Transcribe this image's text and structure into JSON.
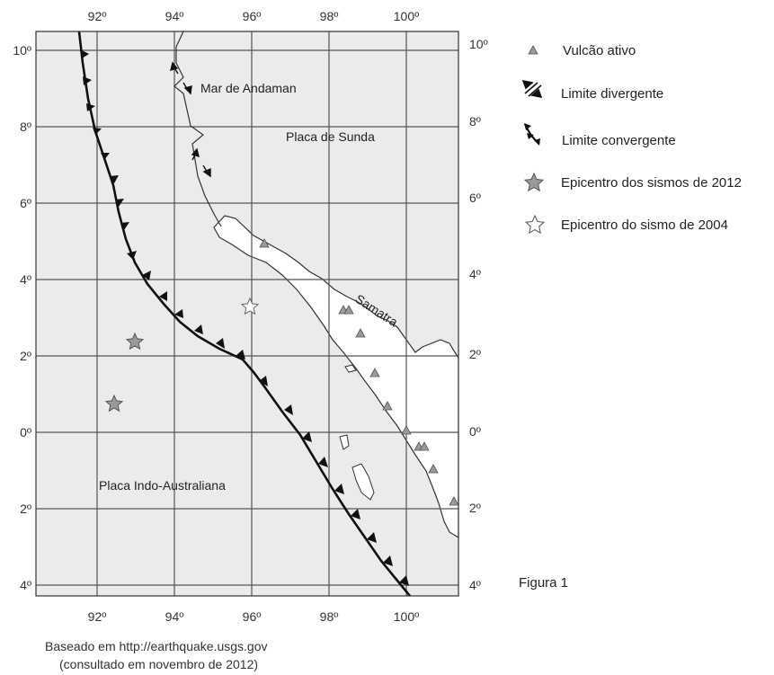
{
  "map": {
    "lon_ticks": [
      "92º",
      "94º",
      "96º",
      "98º",
      "100º"
    ],
    "lat_ticks_left": [
      "10º",
      "8º",
      "6º",
      "4º",
      "2º",
      "0º",
      "2º",
      "4º"
    ],
    "lat_ticks_right": [
      "10º",
      "8º",
      "6º",
      "4º",
      "2º",
      "0º",
      "2º",
      "4º"
    ],
    "labels": {
      "sea": "Mar de Andaman",
      "sunda_plate": "Placa de Sunda",
      "sumatra": "Samatra",
      "indo_australian_plate": "Placa Indo-Australiana"
    },
    "colors": {
      "ocean": "#ebebeb",
      "land": "#ffffff",
      "grid": "#555555",
      "volcano": "#9a9a9a",
      "epicenter_2012": "#9a9a9a",
      "epicenter_2004": "#ffffff"
    }
  },
  "legend": {
    "items": [
      {
        "icon": "triangle-icon",
        "label": "Vulcão ativo"
      },
      {
        "icon": "divergent-boundary-icon",
        "label": "Limite divergente"
      },
      {
        "icon": "convergent-boundary-icon",
        "label": "Limite convergente"
      },
      {
        "icon": "star-filled-icon",
        "label": "Epicentro dos sismos de 2012"
      },
      {
        "icon": "star-outline-icon",
        "label": "Epicentro do sismo de 2004"
      }
    ]
  },
  "figure_label": "Figura 1",
  "source": {
    "line1": "Baseado em http://earthquake.usgs.gov",
    "line2": "(consultado em novembro de 2012)"
  }
}
